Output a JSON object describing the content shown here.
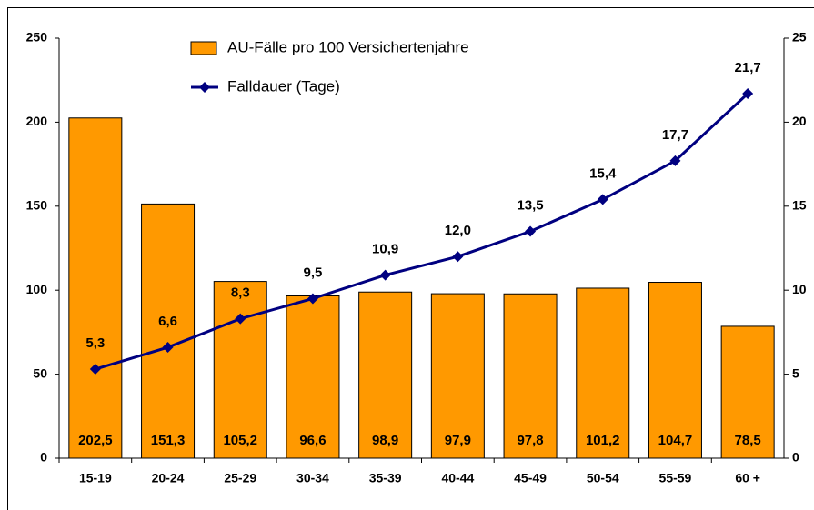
{
  "chart_data": {
    "type": "bar_line",
    "categories": [
      "15-19",
      "20-24",
      "25-29",
      "30-34",
      "35-39",
      "40-44",
      "45-49",
      "50-54",
      "55-59",
      "60 +"
    ],
    "series": [
      {
        "name": "AU-Fälle pro 100 Versichertenjahre",
        "type": "bar",
        "color": "#ff9900",
        "values": [
          202.5,
          151.3,
          105.2,
          96.6,
          98.9,
          97.9,
          97.8,
          101.2,
          104.7,
          78.5
        ],
        "value_labels": [
          "202,5",
          "151,3",
          "105,2",
          "96,6",
          "98,9",
          "97,9",
          "97,8",
          "101,2",
          "104,7",
          "78,5"
        ]
      },
      {
        "name": "Falldauer (Tage)",
        "type": "line",
        "axis": "y2",
        "color": "#000080",
        "values": [
          5.3,
          6.6,
          8.3,
          9.5,
          10.9,
          12.0,
          13.5,
          15.4,
          17.7,
          21.7
        ],
        "value_labels": [
          "5,3",
          "6,6",
          "8,3",
          "9,5",
          "10,9",
          "12,0",
          "13,5",
          "15,4",
          "17,7",
          "21,7"
        ]
      }
    ],
    "ylim": [
      0,
      250
    ],
    "yticks": [
      0,
      50,
      100,
      150,
      200,
      250
    ],
    "y2lim": [
      0,
      25
    ],
    "y2ticks": [
      0,
      5,
      10,
      15,
      20,
      25
    ]
  }
}
